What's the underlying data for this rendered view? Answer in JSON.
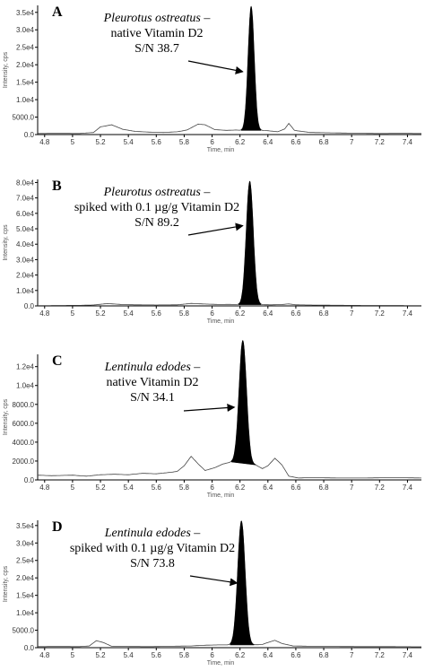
{
  "chart_data": [
    {
      "type": "line",
      "panel_label": "A",
      "annotation": {
        "lines": [
          "Pleurotus ostreatus –",
          "native Vitamin D2",
          "S/N 38.7"
        ],
        "italic_first": true
      },
      "xlabel": "Time, min",
      "ylabel": "Intensity, cps",
      "xlim": [
        4.75,
        7.5
      ],
      "ylim": [
        0,
        37000
      ],
      "x_ticks": [
        4.8,
        5.0,
        5.2,
        5.4,
        5.6,
        5.8,
        6.0,
        6.2,
        6.4,
        6.6,
        6.8,
        7.0,
        7.2,
        7.4
      ],
      "y_ticks": [
        0,
        5000,
        10000,
        15000,
        20000,
        25000,
        30000,
        35000
      ],
      "y_tick_labels": [
        "0.0",
        "5000.0",
        "1.0e4",
        "1.5e4",
        "2.0e4",
        "2.5e4",
        "3.0e4",
        "3.5e4"
      ],
      "peak": {
        "x": 6.28,
        "y": 35500,
        "start": 6.21,
        "end": 6.35
      },
      "arrow_target": {
        "x": 6.22,
        "y": 18000
      },
      "baseline": [
        [
          4.75,
          300
        ],
        [
          4.9,
          350
        ],
        [
          5.05,
          300
        ],
        [
          5.15,
          600
        ],
        [
          5.2,
          2200
        ],
        [
          5.28,
          2800
        ],
        [
          5.36,
          1500
        ],
        [
          5.45,
          900
        ],
        [
          5.55,
          700
        ],
        [
          5.65,
          600
        ],
        [
          5.75,
          800
        ],
        [
          5.82,
          1300
        ],
        [
          5.9,
          3000
        ],
        [
          5.95,
          2800
        ],
        [
          6.02,
          1400
        ],
        [
          6.1,
          1200
        ],
        [
          6.17,
          1300
        ],
        [
          6.21,
          1200
        ],
        [
          6.35,
          1200
        ],
        [
          6.4,
          1100
        ],
        [
          6.47,
          800
        ],
        [
          6.52,
          1600
        ],
        [
          6.55,
          3200
        ],
        [
          6.59,
          1200
        ],
        [
          6.7,
          600
        ],
        [
          6.85,
          500
        ],
        [
          7.0,
          400
        ],
        [
          7.2,
          300
        ],
        [
          7.35,
          350
        ],
        [
          7.5,
          300
        ]
      ]
    },
    {
      "type": "line",
      "panel_label": "B",
      "annotation": {
        "lines": [
          "Pleurotus ostreatus –",
          "spiked with 0.1 µg/g Vitamin D2",
          "S/N 89.2"
        ],
        "italic_first": true
      },
      "xlabel": "Time, min",
      "ylabel": "Intensity, cps",
      "xlim": [
        4.75,
        7.5
      ],
      "ylim": [
        0,
        82000
      ],
      "x_ticks": [
        4.8,
        5.0,
        5.2,
        5.4,
        5.6,
        5.8,
        6.0,
        6.2,
        6.4,
        6.6,
        6.8,
        7.0,
        7.2,
        7.4
      ],
      "y_ticks": [
        0,
        10000,
        20000,
        30000,
        40000,
        50000,
        60000,
        70000,
        80000
      ],
      "y_tick_labels": [
        "0.0",
        "1.0e4",
        "2.0e4",
        "3.0e4",
        "4.0e4",
        "5.0e4",
        "6.0e4",
        "7.0e4",
        "8.0e4"
      ],
      "peak": {
        "x": 6.27,
        "y": 80000,
        "start": 6.19,
        "end": 6.35
      },
      "arrow_target": {
        "x": 6.22,
        "y": 52000
      },
      "baseline": [
        [
          4.75,
          200
        ],
        [
          4.9,
          300
        ],
        [
          5.05,
          350
        ],
        [
          5.15,
          600
        ],
        [
          5.25,
          1500
        ],
        [
          5.35,
          900
        ],
        [
          5.45,
          700
        ],
        [
          5.6,
          600
        ],
        [
          5.75,
          700
        ],
        [
          5.85,
          1600
        ],
        [
          5.95,
          1200
        ],
        [
          6.05,
          900
        ],
        [
          6.12,
          1000
        ],
        [
          6.19,
          800
        ],
        [
          6.35,
          800
        ],
        [
          6.42,
          700
        ],
        [
          6.5,
          900
        ],
        [
          6.55,
          1300
        ],
        [
          6.6,
          700
        ],
        [
          6.75,
          500
        ],
        [
          6.9,
          400
        ],
        [
          7.1,
          300
        ],
        [
          7.3,
          300
        ],
        [
          7.5,
          200
        ]
      ]
    },
    {
      "type": "line",
      "panel_label": "C",
      "annotation": {
        "lines": [
          "Lentinula edodes –",
          "native Vitamin D2",
          "S/N 34.1"
        ],
        "italic_first": true
      },
      "xlabel": "Time, min",
      "ylabel": "Intensity, cps",
      "xlim": [
        4.75,
        7.5
      ],
      "ylim": [
        0,
        13300
      ],
      "x_ticks": [
        4.8,
        5.0,
        5.2,
        5.4,
        5.6,
        5.8,
        6.0,
        6.2,
        6.4,
        6.6,
        6.8,
        7.0,
        7.2,
        7.4
      ],
      "y_ticks": [
        0,
        2000,
        4000,
        6000,
        8000,
        10000,
        12000
      ],
      "y_tick_labels": [
        "0.0",
        "2000.0",
        "4000.0",
        "6000.0",
        "8000.0",
        "1.0e4",
        "1.2e4"
      ],
      "peak": {
        "x": 6.22,
        "y": 13000,
        "start": 6.14,
        "end": 6.31
      },
      "arrow_target": {
        "x": 6.16,
        "y": 7700
      },
      "baseline": [
        [
          4.75,
          500
        ],
        [
          4.85,
          450
        ],
        [
          5.0,
          500
        ],
        [
          5.1,
          400
        ],
        [
          5.2,
          550
        ],
        [
          5.3,
          600
        ],
        [
          5.4,
          550
        ],
        [
          5.5,
          700
        ],
        [
          5.6,
          650
        ],
        [
          5.7,
          800
        ],
        [
          5.75,
          900
        ],
        [
          5.8,
          1500
        ],
        [
          5.85,
          2500
        ],
        [
          5.9,
          1700
        ],
        [
          5.95,
          1000
        ],
        [
          6.02,
          1300
        ],
        [
          6.08,
          1700
        ],
        [
          6.14,
          1900
        ],
        [
          6.31,
          1600
        ],
        [
          6.36,
          1200
        ],
        [
          6.4,
          1500
        ],
        [
          6.45,
          2300
        ],
        [
          6.5,
          1600
        ],
        [
          6.55,
          400
        ],
        [
          6.62,
          200
        ],
        [
          6.7,
          250
        ],
        [
          6.9,
          200
        ],
        [
          7.1,
          200
        ],
        [
          7.3,
          250
        ],
        [
          7.5,
          200
        ]
      ]
    },
    {
      "type": "line",
      "panel_label": "D",
      "annotation": {
        "lines": [
          "Lentinula edodes –",
          "spiked with 0.1 µg/g Vitamin D2",
          "S/N 73.8"
        ],
        "italic_first": true
      },
      "xlabel": "Time, min",
      "ylabel": "Intensity, cps",
      "xlim": [
        4.75,
        7.5
      ],
      "ylim": [
        0,
        36500
      ],
      "x_ticks": [
        4.8,
        5.0,
        5.2,
        5.4,
        5.6,
        5.8,
        6.0,
        6.2,
        6.4,
        6.6,
        6.8,
        7.0,
        7.2,
        7.4
      ],
      "y_ticks": [
        0,
        5000,
        10000,
        15000,
        20000,
        25000,
        30000,
        35000
      ],
      "y_tick_labels": [
        "0.0",
        "5000.0",
        "1.0e4",
        "1.5e4",
        "2.0e4",
        "2.5e4",
        "3.0e4",
        "3.5e4"
      ],
      "peak": {
        "x": 6.21,
        "y": 35500,
        "start": 6.13,
        "end": 6.3
      },
      "arrow_target": {
        "x": 6.18,
        "y": 18500
      },
      "baseline": [
        [
          4.75,
          300
        ],
        [
          4.9,
          350
        ],
        [
          5.05,
          300
        ],
        [
          5.12,
          500
        ],
        [
          5.17,
          2000
        ],
        [
          5.22,
          1500
        ],
        [
          5.28,
          400
        ],
        [
          5.4,
          350
        ],
        [
          5.55,
          300
        ],
        [
          5.7,
          400
        ],
        [
          5.85,
          500
        ],
        [
          5.95,
          700
        ],
        [
          6.05,
          800
        ],
        [
          6.13,
          800
        ],
        [
          6.3,
          800
        ],
        [
          6.36,
          900
        ],
        [
          6.4,
          1500
        ],
        [
          6.45,
          2100
        ],
        [
          6.5,
          1200
        ],
        [
          6.58,
          500
        ],
        [
          6.7,
          400
        ],
        [
          6.9,
          350
        ],
        [
          7.1,
          300
        ],
        [
          7.3,
          300
        ],
        [
          7.5,
          250
        ]
      ]
    }
  ]
}
